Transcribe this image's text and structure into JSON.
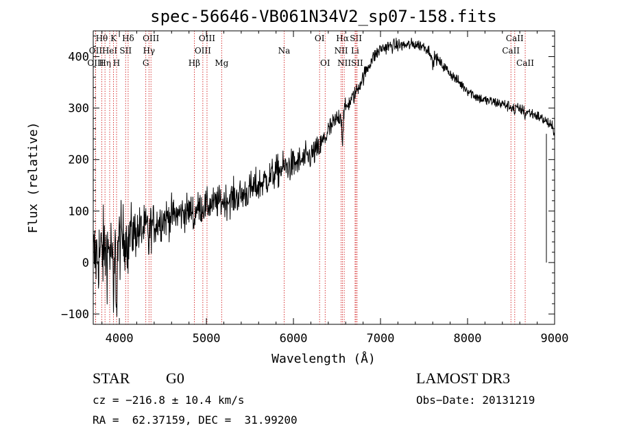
{
  "chart_data": {
    "type": "line",
    "title": "spec-56646-VB061N34V2_sp07-158.fits",
    "xlabel": "Wavelength (Å)",
    "ylabel": "Flux (relative)",
    "xlim": [
      3700,
      9000
    ],
    "ylim": [
      -120,
      450
    ],
    "xticks": [
      4000,
      5000,
      6000,
      7000,
      8000,
      9000
    ],
    "yticks": [
      -100,
      0,
      100,
      200,
      300,
      400
    ],
    "xtick_labels": [
      "4000",
      "5000",
      "6000",
      "7000",
      "8000",
      "9000"
    ],
    "ytick_labels": [
      "−100",
      "0",
      "100",
      "200",
      "300",
      "400"
    ],
    "series": [
      {
        "name": "spectrum",
        "color": "#000000",
        "continuum": [
          [
            3700,
            10
          ],
          [
            3800,
            20
          ],
          [
            3900,
            25
          ],
          [
            4000,
            40
          ],
          [
            4100,
            55
          ],
          [
            4200,
            60
          ],
          [
            4300,
            65
          ],
          [
            4400,
            75
          ],
          [
            4500,
            85
          ],
          [
            4700,
            95
          ],
          [
            4900,
            105
          ],
          [
            5000,
            110
          ],
          [
            5200,
            120
          ],
          [
            5400,
            130
          ],
          [
            5600,
            150
          ],
          [
            5800,
            175
          ],
          [
            5900,
            185
          ],
          [
            6000,
            190
          ],
          [
            6100,
            198
          ],
          [
            6200,
            208
          ],
          [
            6300,
            222
          ],
          [
            6400,
            255
          ],
          [
            6500,
            278
          ],
          [
            6600,
            300
          ],
          [
            6700,
            325
          ],
          [
            6800,
            360
          ],
          [
            6900,
            395
          ],
          [
            7000,
            415
          ],
          [
            7100,
            420
          ],
          [
            7200,
            422
          ],
          [
            7300,
            422
          ],
          [
            7400,
            424
          ],
          [
            7500,
            420
          ],
          [
            7600,
            405
          ],
          [
            7700,
            385
          ],
          [
            7800,
            368
          ],
          [
            7900,
            350
          ],
          [
            8000,
            335
          ],
          [
            8100,
            322
          ],
          [
            8200,
            315
          ],
          [
            8300,
            312
          ],
          [
            8400,
            308
          ],
          [
            8500,
            302
          ],
          [
            8600,
            298
          ],
          [
            8700,
            292
          ],
          [
            8800,
            285
          ],
          [
            8900,
            275
          ],
          [
            8970,
            262
          ],
          [
            9000,
            255
          ]
        ],
        "noise_regions": [
          [
            3700,
            60
          ],
          [
            3950,
            55
          ],
          [
            4200,
            35
          ],
          [
            4500,
            28
          ],
          [
            5000,
            22
          ],
          [
            5500,
            25
          ],
          [
            6000,
            22
          ],
          [
            6400,
            18
          ],
          [
            6600,
            12
          ],
          [
            7000,
            10
          ],
          [
            7500,
            8
          ],
          [
            8000,
            8
          ],
          [
            9000,
            8
          ]
        ],
        "absorption_dips": [
          [
            3933,
            120,
            10
          ],
          [
            3968,
            110,
            10
          ],
          [
            4101,
            40,
            8
          ],
          [
            4340,
            40,
            8
          ],
          [
            4861,
            30,
            8
          ],
          [
            6563,
            55,
            10
          ],
          [
            7600,
            25,
            12
          ],
          [
            8542,
            15,
            6
          ],
          [
            8662,
            15,
            6
          ]
        ]
      }
    ],
    "line_marks": [
      {
        "label": "Hθ",
        "wavelength": 3798,
        "row": 0
      },
      {
        "label": "OII",
        "wavelength": 3727,
        "row": 1
      },
      {
        "label": "OIII",
        "wavelength": 3727,
        "row": 2
      },
      {
        "label": "Hη",
        "wavelength": 3835,
        "row": 2
      },
      {
        "label": "HeI",
        "wavelength": 3889,
        "row": 1
      },
      {
        "label": "K",
        "wavelength": 3933,
        "row": 0
      },
      {
        "label": "H",
        "wavelength": 3968,
        "row": 2
      },
      {
        "label": "SII",
        "wavelength": 4072,
        "row": 1
      },
      {
        "label": "Hδ",
        "wavelength": 4101,
        "row": 0
      },
      {
        "label": "G",
        "wavelength": 4304,
        "row": 2
      },
      {
        "label": "OIII",
        "wavelength": 4363,
        "row": 0
      },
      {
        "label": "Hγ",
        "wavelength": 4340,
        "row": 1
      },
      {
        "label": "Hβ",
        "wavelength": 4861,
        "row": 2
      },
      {
        "label": "OIII",
        "wavelength": 4959,
        "row": 1
      },
      {
        "label": "OIII",
        "wavelength": 5007,
        "row": 0
      },
      {
        "label": "Mg",
        "wavelength": 5175,
        "row": 2
      },
      {
        "label": "Na",
        "wavelength": 5893,
        "row": 1
      },
      {
        "label": "OI",
        "wavelength": 6300,
        "row": 0
      },
      {
        "label": "OI",
        "wavelength": 6364,
        "row": 2
      },
      {
        "label": "Hα",
        "wavelength": 6563,
        "row": 0
      },
      {
        "label": "NII",
        "wavelength": 6548,
        "row": 1
      },
      {
        "label": "NII",
        "wavelength": 6583,
        "row": 2
      },
      {
        "label": "SII",
        "wavelength": 6717,
        "row": 0
      },
      {
        "label": "Li",
        "wavelength": 6708,
        "row": 1
      },
      {
        "label": "SII",
        "wavelength": 6731,
        "row": 2
      },
      {
        "label": "CaII",
        "wavelength": 8542,
        "row": 0
      },
      {
        "label": "CaII",
        "wavelength": 8498,
        "row": 1
      },
      {
        "label": "CaII",
        "wavelength": 8662,
        "row": 2
      }
    ]
  },
  "info": {
    "class": "STAR",
    "subclass": "G0",
    "survey": "LAMOST DR3",
    "cz": "cz = −216.8 ± 10.4 km/s",
    "obs_date": "Obs−Date: 20131219",
    "coords": "RA =  62.37159, DEC =  31.99200"
  },
  "colors": {
    "spectrum": "#000000",
    "line_marker": "#cc0000",
    "axis": "#000000",
    "background": "#ffffff"
  }
}
